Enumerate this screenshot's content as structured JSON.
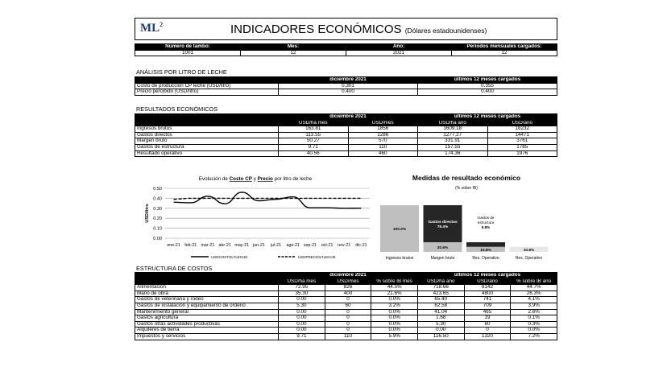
{
  "header": {
    "logo": "ML",
    "logo_sup": "2",
    "title": "INDICADORES ECONÓMICOS",
    "subtitle": "(Dólares estadounidenses)"
  },
  "info": {
    "headers": [
      "Número de tambo:",
      "Mes:",
      "Año:",
      "Períodos mensuales cargados:"
    ],
    "values": [
      "1001",
      "12",
      "2021",
      "12"
    ]
  },
  "analisis": {
    "title": "ANÁLISIS POR LITRO DE LECHE",
    "col1": "diciembre 2021",
    "col2": "últimos 12 meses cargados",
    "rows": [
      [
        "Costo de producción CP leche (USD/litro)",
        "0.301",
        "0.355"
      ],
      [
        "Precio percibido (USD/litro)",
        "0.400",
        "0.400"
      ]
    ]
  },
  "resultados": {
    "title": "RESULTADOS ECONÓMICOS",
    "group1": "diciembre 2021",
    "group2": "últimos 12 meses cargados",
    "subheaders": [
      "USD/ha mes",
      "USD/mes",
      "USD/ha año",
      "USD/año"
    ],
    "rows": [
      [
        "Ingresos brutos",
        "163.81",
        "1856",
        "1609.18",
        "18232"
      ],
      [
        "Gastos directos",
        "113.55",
        "1286",
        "1277.27",
        "14471"
      ],
      [
        "Margen bruto",
        "50.27",
        "570",
        "331.91",
        "3761"
      ],
      [
        "Gastos de estructura",
        "9.71",
        "110",
        "157.55",
        "1785"
      ],
      [
        "Resultado operativo",
        "40.56",
        "460",
        "174.36",
        "1976"
      ]
    ]
  },
  "estructura": {
    "title": "ESTRUCTURA DE COSTOS",
    "group1": "diciembre 2021",
    "group2": "últimos 12 meses cargados",
    "subheaders": [
      "USD/ha mes",
      "USD/mes",
      "% sobre IB mes",
      "USD/ha año",
      "USD/año",
      "% sobre IB año"
    ],
    "rows": [
      [
        "Alimentación",
        "72.95",
        "826",
        "44.5%",
        "718.66",
        "8142",
        "44.7%"
      ],
      [
        "Mano de obra",
        "35.30",
        "400",
        "21.6%",
        "423.65",
        "4800",
        "26.3%"
      ],
      [
        "Gastos de veterinaria y rodeo",
        "0.00",
        "0",
        "0.0%",
        "65.40",
        "741",
        "4.1%"
      ],
      [
        "Gastos de instalación y equipamiento de ordeño",
        "5.30",
        "60",
        "3.2%",
        "62.58",
        "709",
        "3.9%"
      ],
      [
        "Mantenimiento general",
        "0.00",
        "0",
        "0.0%",
        "41.04",
        "465",
        "2.6%"
      ],
      [
        "Gastos agricultura",
        "0.00",
        "0",
        "0.0%",
        "1.68",
        "19",
        "0.1%"
      ],
      [
        "Gastos otras actividades productivas",
        "0.00",
        "0",
        "0.0%",
        "5.30",
        "60",
        "0.3%"
      ],
      [
        "Alquileres de tierra",
        "0.00",
        "0",
        "0.0%",
        "0.00",
        "0",
        "0.0%"
      ],
      [
        "Impuestos y servicios",
        "9.71",
        "110",
        "5.9%",
        "116.50",
        "1320",
        "7.2%"
      ]
    ]
  },
  "chart_data": [
    {
      "type": "line",
      "title_parts": [
        "Evolución de ",
        "Costo CP",
        " y ",
        "Precio",
        " por litro de leche"
      ],
      "ylabel": "USD/litro",
      "ylim": [
        0,
        0.5
      ],
      "yticks": [
        "0.00",
        "0.10",
        "0.20",
        "0.30",
        "0.40",
        "0.50"
      ],
      "categories": [
        "ene-21",
        "feb-21",
        "mar-21",
        "abr-21",
        "may-21",
        "jun-21",
        "jul-21",
        "ago-21",
        "sep-21",
        "oct-21",
        "nov-21",
        "dic-21"
      ],
      "series": [
        {
          "name": "USDCOSTOLTLECHE",
          "style": "solid",
          "values": [
            0.36,
            0.355,
            0.42,
            0.345,
            0.46,
            0.375,
            0.39,
            0.415,
            0.305,
            0.305,
            0.3,
            0.301
          ]
        },
        {
          "name": "USDPRECIOLTLECHE",
          "style": "dashed",
          "values": [
            0.39,
            0.4,
            0.4,
            0.4,
            0.4,
            0.4,
            0.4,
            0.4,
            0.4,
            0.4,
            0.4,
            0.4
          ]
        }
      ],
      "grid": true,
      "legend": "bottom"
    },
    {
      "type": "bar",
      "title": "Medidas de resultado económico",
      "subtitle": "(% sobre IB)",
      "categories": [
        "Ingresos brutos",
        "Margen bruto",
        "Res. Operativo",
        "Res. Operativo"
      ],
      "bars": [
        {
          "segments": [
            {
              "value": 100.0,
              "label": "100.0%",
              "color": "#bfbfbf"
            }
          ]
        },
        {
          "segments": [
            {
              "value": 20.6,
              "label": "20.6%",
              "color": "#bfbfbf"
            },
            {
              "value": 79.4,
              "label": "Gastos directos\n79.4%",
              "color": "#262626"
            }
          ]
        },
        {
          "segments": [
            {
              "value": 10.8,
              "label": "10.8%",
              "color": "#bfbfbf"
            },
            {
              "value": 9.8,
              "label": "",
              "color": "#262626"
            }
          ],
          "annotation": [
            "Gastos de",
            "estructura",
            "9.8%"
          ]
        },
        {
          "segments": [
            {
              "value": 10.8,
              "label": "10.8%",
              "color": "#e6e6e6"
            }
          ]
        }
      ]
    }
  ]
}
